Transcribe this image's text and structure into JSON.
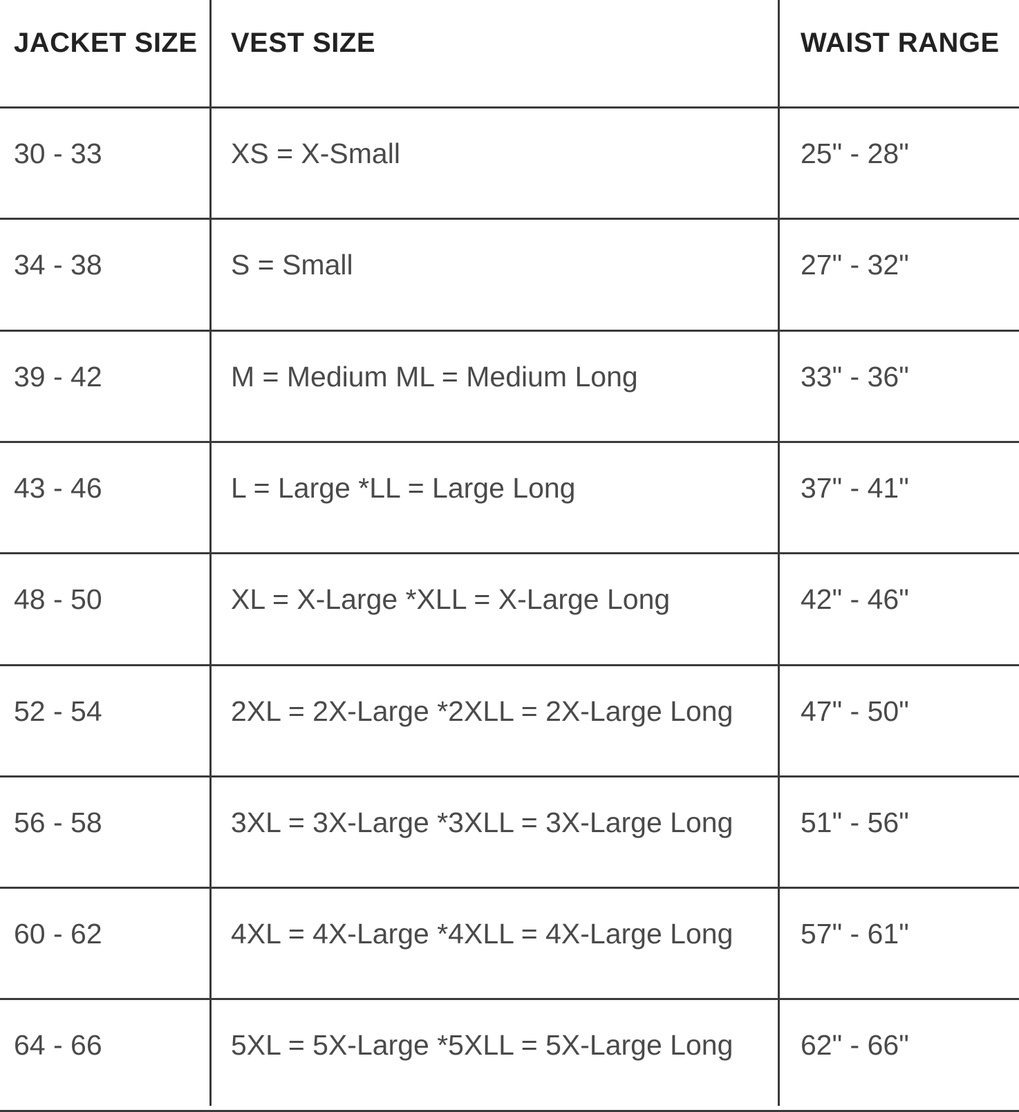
{
  "table": {
    "headers": [
      "JACKET SIZE",
      "VEST SIZE",
      "WAIST RANGE"
    ],
    "rows": [
      [
        "30 - 33",
        "XS = X-Small",
        "25\" - 28\""
      ],
      [
        "34 - 38",
        "S = Small",
        "27\" - 32\""
      ],
      [
        "39 - 42",
        "M = Medium ML = Medium Long",
        "33\" - 36\""
      ],
      [
        "43 - 46",
        "L = Large *LL = Large Long",
        "37\" - 41\""
      ],
      [
        "48 - 50",
        "XL = X-Large *XLL = X-Large Long",
        "42\" - 46\""
      ],
      [
        "52 - 54",
        "2XL = 2X-Large *2XLL = 2X-Large Long",
        "47\" - 50\""
      ],
      [
        "56 - 58",
        "3XL = 3X-Large *3XLL = 3X-Large Long",
        "51\" - 56\""
      ],
      [
        "60 - 62",
        "4XL = 4X-Large *4XLL = 4X-Large Long",
        "57\" - 61\""
      ],
      [
        "64 - 66",
        "5XL = 5X-Large *5XLL = 5X-Large Long",
        "62\" - 66\""
      ]
    ]
  }
}
